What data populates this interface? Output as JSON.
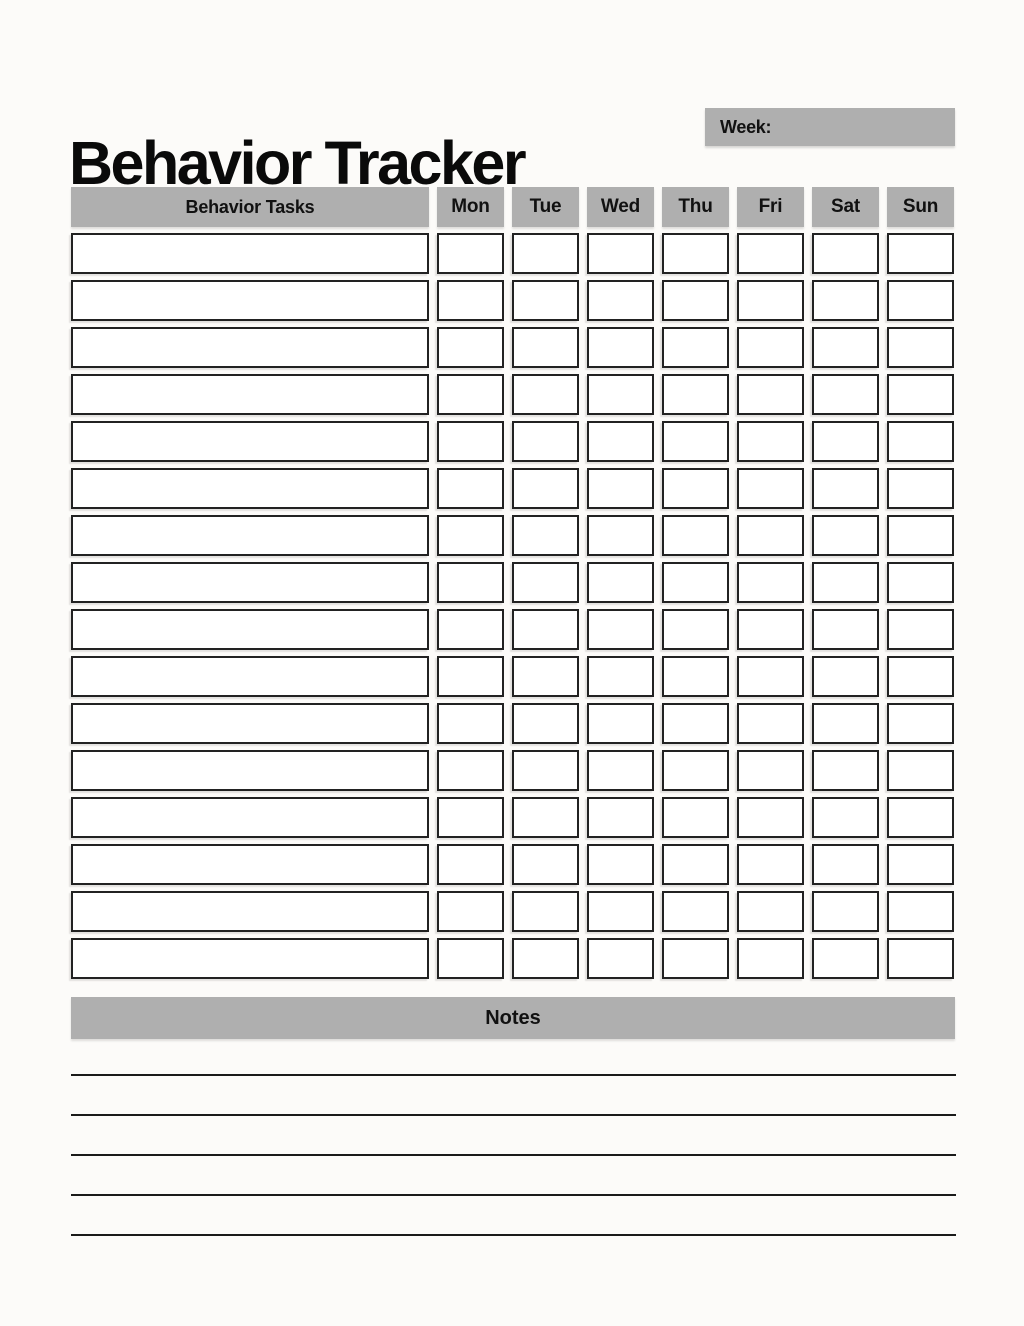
{
  "page": {
    "title": "Behavior Tracker"
  },
  "week": {
    "label": "Week:",
    "value": ""
  },
  "table": {
    "task_header": "Behavior Tasks",
    "day_headers": [
      "Mon",
      "Tue",
      "Wed",
      "Thu",
      "Fri",
      "Sat",
      "Sun"
    ],
    "rows": [
      {
        "task": "",
        "days": [
          "",
          "",
          "",
          "",
          "",
          "",
          ""
        ]
      },
      {
        "task": "",
        "days": [
          "",
          "",
          "",
          "",
          "",
          "",
          ""
        ]
      },
      {
        "task": "",
        "days": [
          "",
          "",
          "",
          "",
          "",
          "",
          ""
        ]
      },
      {
        "task": "",
        "days": [
          "",
          "",
          "",
          "",
          "",
          "",
          ""
        ]
      },
      {
        "task": "",
        "days": [
          "",
          "",
          "",
          "",
          "",
          "",
          ""
        ]
      },
      {
        "task": "",
        "days": [
          "",
          "",
          "",
          "",
          "",
          "",
          ""
        ]
      },
      {
        "task": "",
        "days": [
          "",
          "",
          "",
          "",
          "",
          "",
          ""
        ]
      },
      {
        "task": "",
        "days": [
          "",
          "",
          "",
          "",
          "",
          "",
          ""
        ]
      },
      {
        "task": "",
        "days": [
          "",
          "",
          "",
          "",
          "",
          "",
          ""
        ]
      },
      {
        "task": "",
        "days": [
          "",
          "",
          "",
          "",
          "",
          "",
          ""
        ]
      },
      {
        "task": "",
        "days": [
          "",
          "",
          "",
          "",
          "",
          "",
          ""
        ]
      },
      {
        "task": "",
        "days": [
          "",
          "",
          "",
          "",
          "",
          "",
          ""
        ]
      },
      {
        "task": "",
        "days": [
          "",
          "",
          "",
          "",
          "",
          "",
          ""
        ]
      },
      {
        "task": "",
        "days": [
          "",
          "",
          "",
          "",
          "",
          "",
          ""
        ]
      },
      {
        "task": "",
        "days": [
          "",
          "",
          "",
          "",
          "",
          "",
          ""
        ]
      },
      {
        "task": "",
        "days": [
          "",
          "",
          "",
          "",
          "",
          "",
          ""
        ]
      }
    ]
  },
  "notes": {
    "header": "Notes",
    "lines": [
      "",
      "",
      "",
      "",
      ""
    ]
  },
  "colors": {
    "header_bg": "#afafaf",
    "cell_border": "#222222",
    "line": "#1a1a1a",
    "text": "#111111",
    "page_bg": "#fcfbf9"
  }
}
